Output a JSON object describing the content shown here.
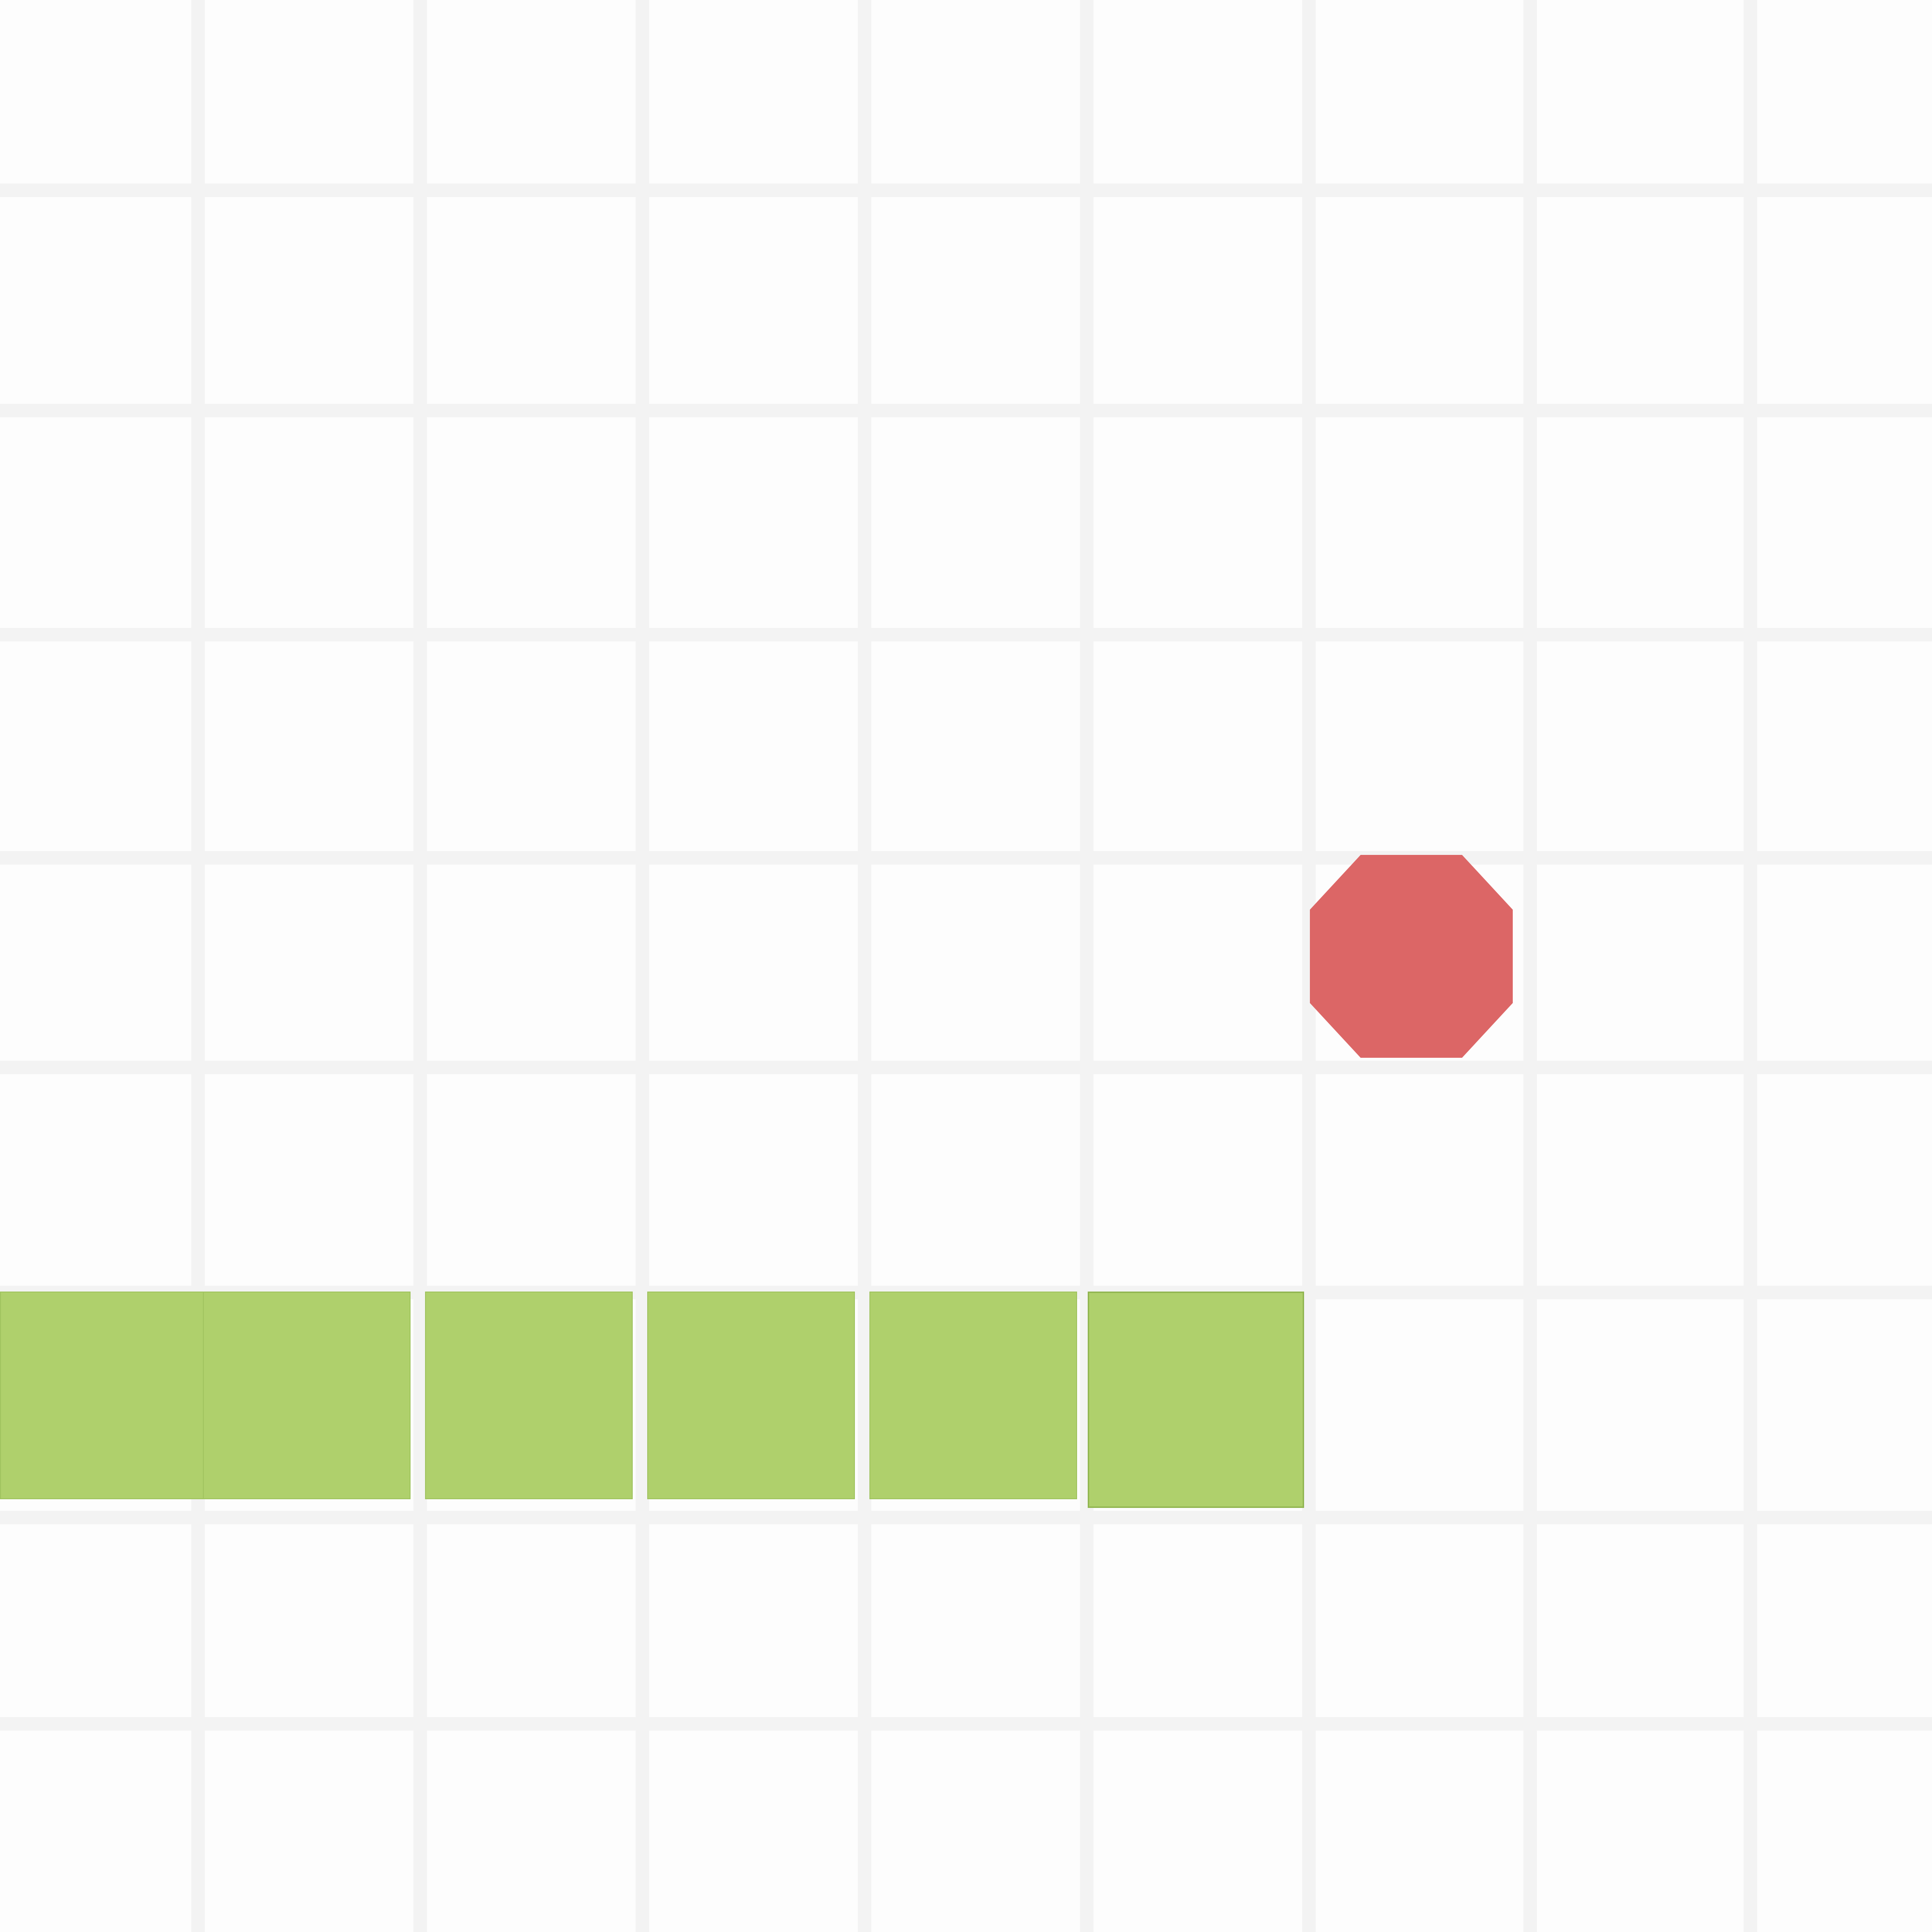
{
  "game": {
    "grid": {
      "columns": 9,
      "rows": 9,
      "line_color": "#f3f3f3",
      "background_color": "#fdfdfd"
    },
    "snake": {
      "color": "#afd06c",
      "direction": "right",
      "segments": [
        {
          "col": 0,
          "row": 6
        },
        {
          "col": 1,
          "row": 6
        },
        {
          "col": 2,
          "row": 6
        },
        {
          "col": 3,
          "row": 6
        },
        {
          "col": 4,
          "row": 6
        },
        {
          "col": 5,
          "row": 6
        }
      ]
    },
    "food": {
      "col": 6,
      "row": 4,
      "color": "#dc6666",
      "shape": "rounded-octagon"
    }
  }
}
